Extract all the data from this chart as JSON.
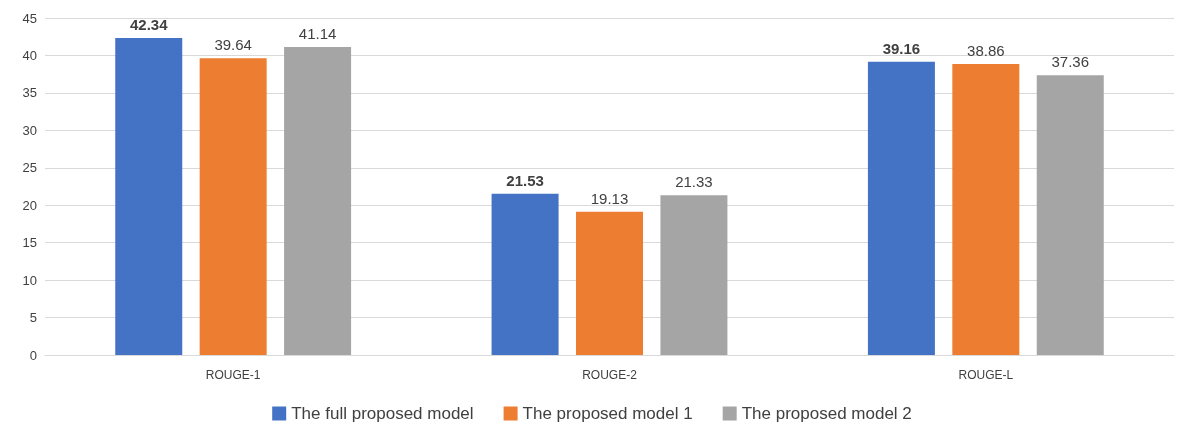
{
  "chart_data": {
    "type": "bar",
    "categories": [
      "ROUGE-1",
      "ROUGE-2",
      "ROUGE-L"
    ],
    "series": [
      {
        "name": "The full proposed model",
        "color": "#4472c4",
        "values": [
          42.34,
          21.53,
          39.16
        ]
      },
      {
        "name": "The proposed model 1",
        "color": "#ed7d31",
        "values": [
          39.64,
          19.13,
          38.86
        ]
      },
      {
        "name": "The proposed model 2",
        "color": "#a5a5a5",
        "values": [
          41.14,
          21.33,
          37.36
        ]
      }
    ],
    "ylim": [
      0,
      45
    ],
    "yticks": [
      0,
      5,
      10,
      15,
      20,
      25,
      30,
      35,
      40,
      45
    ],
    "grid": "y",
    "legend": "bottom",
    "data_labels": true
  }
}
